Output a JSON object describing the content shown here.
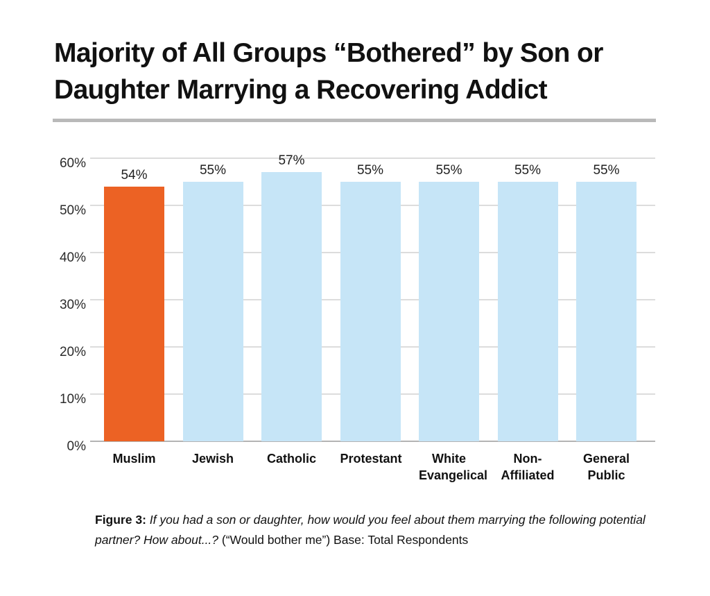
{
  "caption": {
    "prefix": "Figure 3:",
    "question": "If you had a son or daughter, how would you feel about them marrying the following potential partner? How about...?",
    "tail": "(“Would bother me”) Base: Total Respondents"
  },
  "chart_data": {
    "type": "bar",
    "title": "Majority of All Groups “Bothered” by Son or Daughter Marrying a Recovering Addict",
    "categories": [
      "Muslim",
      "Jewish",
      "Catholic",
      "Protestant",
      "White\nEvangelical",
      "Non-\nAffiliated",
      "General\nPublic"
    ],
    "values": [
      54,
      55,
      57,
      55,
      55,
      55,
      55
    ],
    "value_labels": [
      "54%",
      "55%",
      "57%",
      "55%",
      "55%",
      "55%",
      "55%"
    ],
    "y_ticks": [
      "60%",
      "50%",
      "40%",
      "30%",
      "20%",
      "10%",
      "0%"
    ],
    "xlabel": "",
    "ylabel": "",
    "ylim": [
      0,
      60
    ],
    "grid": true,
    "legend": "none",
    "highlight_index": 0,
    "colors": {
      "highlight": "#EC6224",
      "default": "#C6E5F7",
      "gridline": "#DCDCDC",
      "baseline": "#B3B3B3",
      "divider": "#B9B9B9",
      "text": "#111111"
    }
  }
}
